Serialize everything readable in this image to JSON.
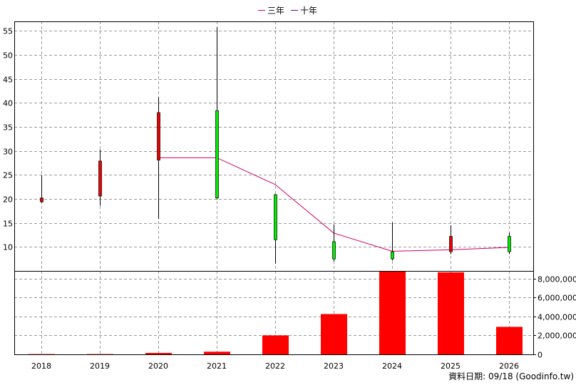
{
  "chart_data": {
    "type": "candlestick",
    "legend": [
      {
        "name": "三年",
        "color": "#cc0066"
      },
      {
        "name": "十年",
        "color": "#6600cc"
      }
    ],
    "categories": [
      "2018",
      "2019",
      "2020",
      "2021",
      "2022",
      "2023",
      "2024",
      "2025",
      "2026"
    ],
    "price": {
      "yticks": [
        10,
        15,
        20,
        25,
        30,
        35,
        40,
        45,
        50,
        55
      ],
      "ylim": [
        5,
        57
      ],
      "candles": [
        {
          "open": 20.2,
          "high": 24.9,
          "low": 19.2,
          "close": 19.4
        },
        {
          "open": 27.9,
          "high": 30.3,
          "low": 18.6,
          "close": 20.6
        },
        {
          "open": 38.0,
          "high": 41.2,
          "low": 15.8,
          "close": 28.1
        },
        {
          "open": 20.2,
          "high": 55.8,
          "low": 19.9,
          "close": 38.4
        },
        {
          "open": 11.5,
          "high": 21.0,
          "low": 6.5,
          "close": 20.9
        },
        {
          "open": 7.5,
          "high": 14.7,
          "low": 7.0,
          "close": 11.1
        },
        {
          "open": 7.5,
          "high": 15.1,
          "low": 7.2,
          "close": 9.0
        },
        {
          "open": 12.2,
          "high": 14.5,
          "low": 8.5,
          "close": 9.0
        },
        {
          "open": 9.0,
          "high": 13.0,
          "low": 8.5,
          "close": 12.2
        }
      ],
      "up_color": "#00ee00",
      "down_color": "#ee0000",
      "line_series": {
        "name": "三年",
        "color": "#cc0066",
        "values": [
          null,
          null,
          28.6,
          28.6,
          23.0,
          12.9,
          9.1,
          9.4,
          9.9
        ]
      }
    },
    "volume": {
      "yticks": [
        "0",
        "2,000,000",
        "4,000,000",
        "6,000,000",
        "8,000,000"
      ],
      "ytick_values": [
        0,
        2000000,
        4000000,
        6000000,
        8000000
      ],
      "ylim": [
        0,
        8800000
      ],
      "values": [
        30000,
        30000,
        150000,
        280000,
        2000000,
        4250000,
        8800000,
        8650000,
        2900000
      ],
      "color": "#ff0000"
    }
  },
  "footer": {
    "text": "資料日期: 09/18  (Goodinfo.tw)"
  }
}
